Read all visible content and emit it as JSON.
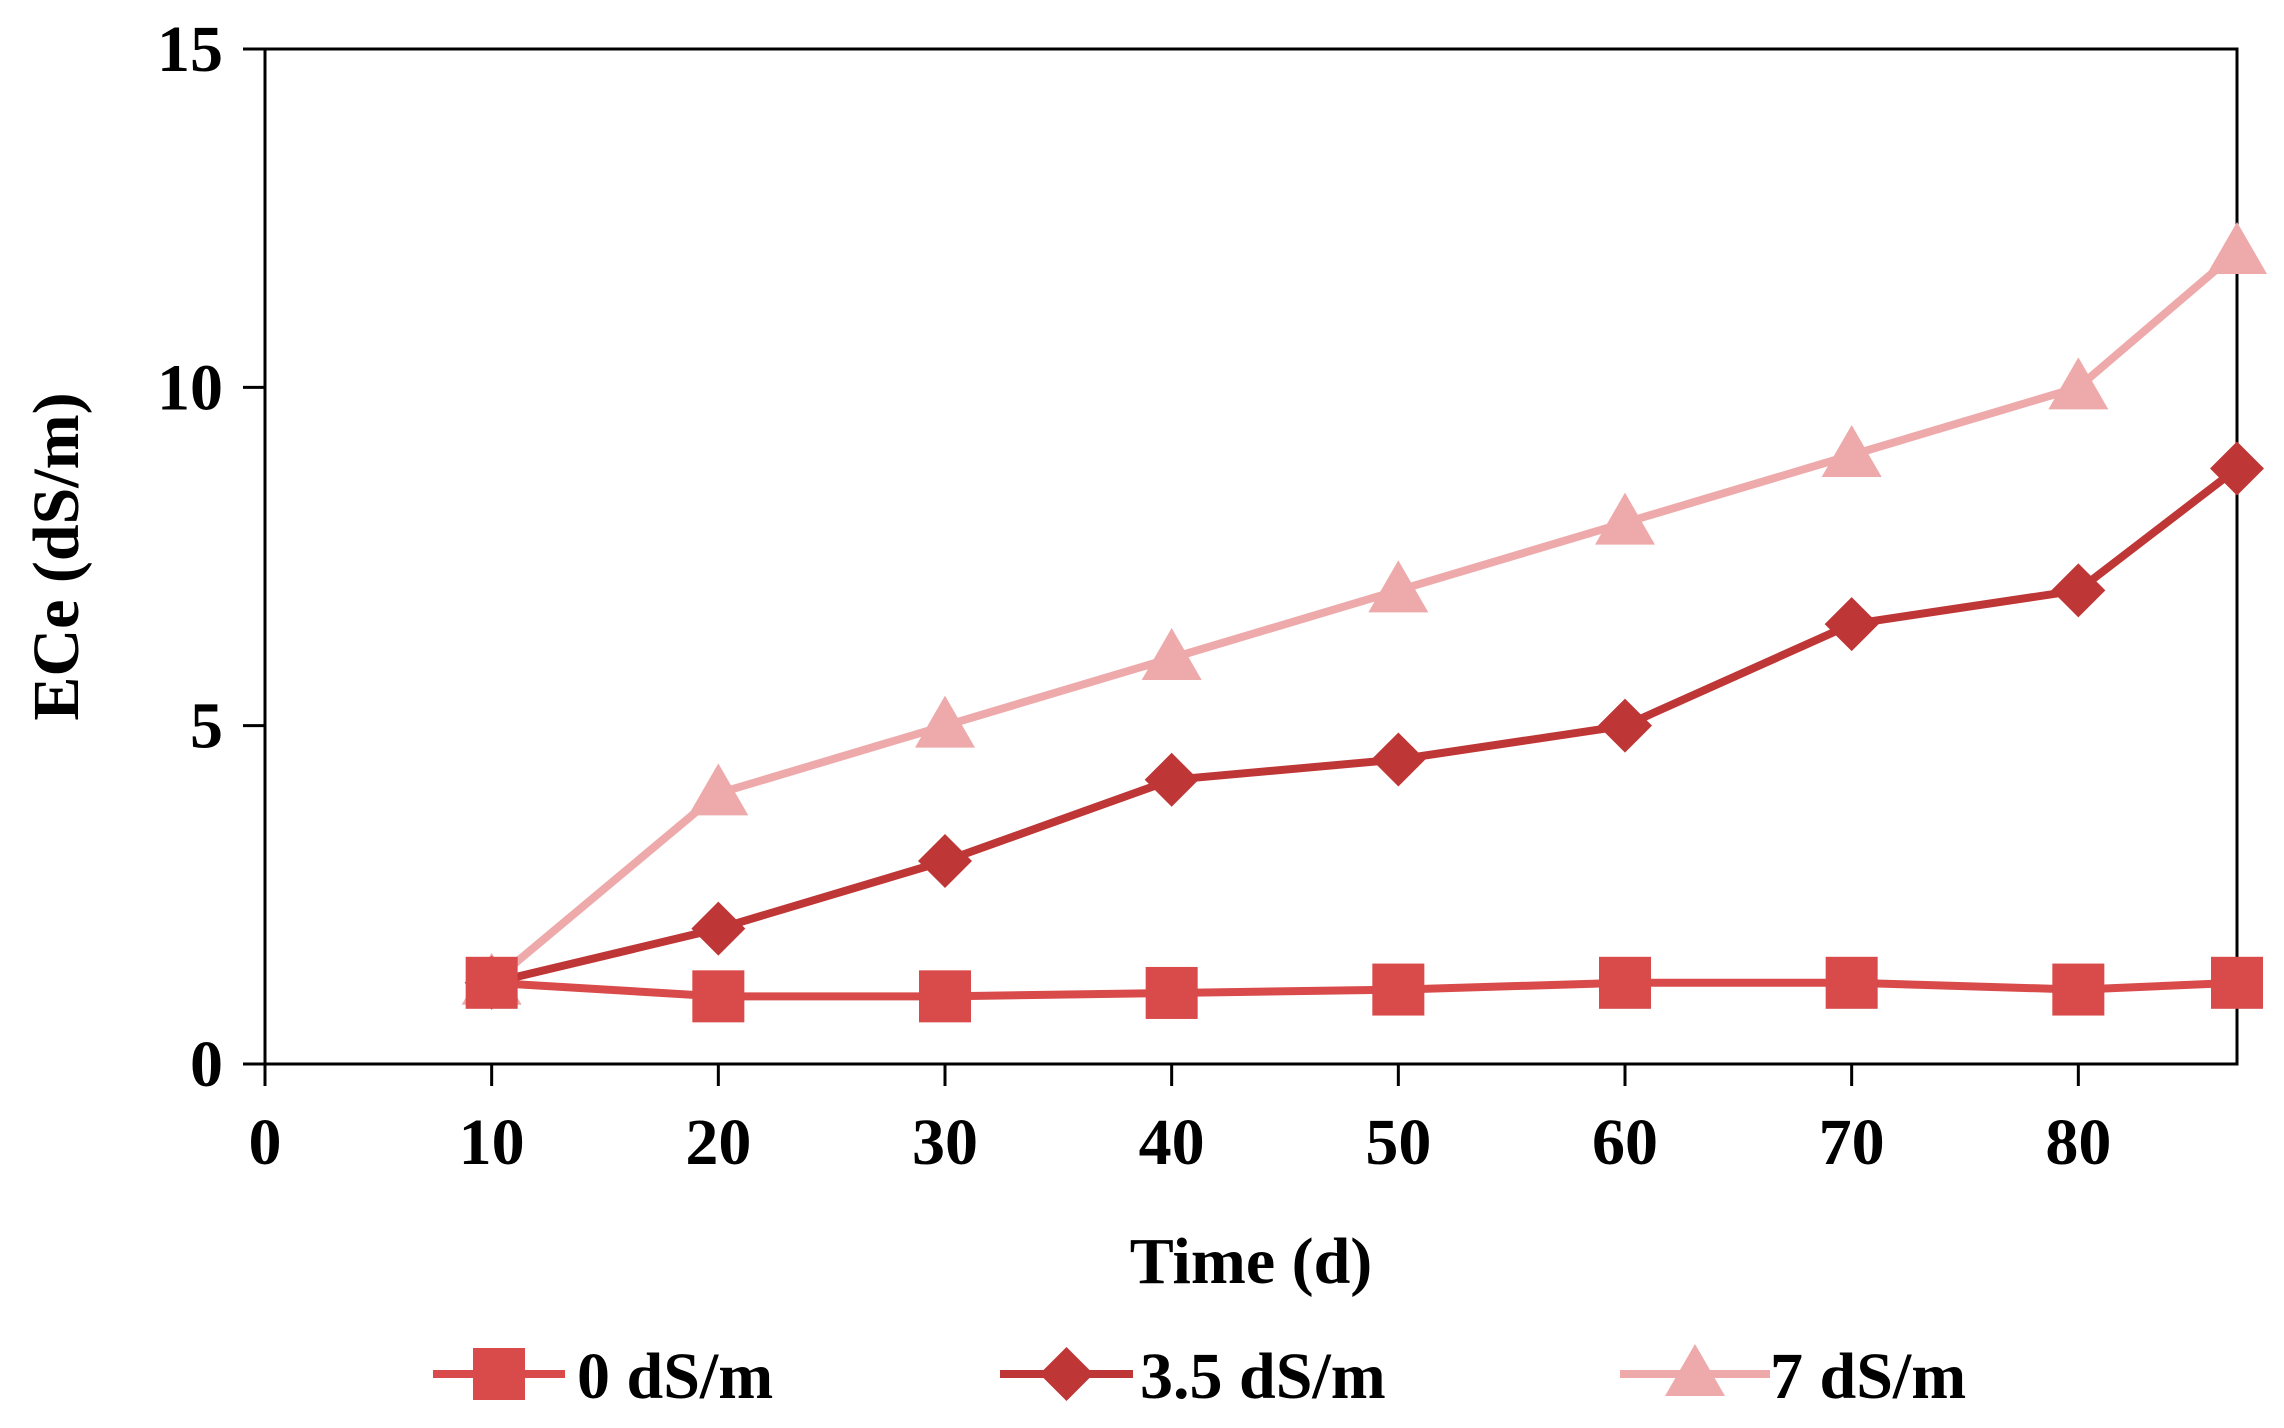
{
  "chart_data": {
    "type": "line",
    "title": "",
    "xlabel": "Time (d)",
    "ylabel": "ECe (dS/m)",
    "xlim": [
      0,
      87
    ],
    "ylim": [
      0,
      15
    ],
    "xticks": [
      0,
      10,
      20,
      30,
      40,
      50,
      60,
      70,
      80
    ],
    "yticks": [
      0,
      5,
      10,
      15
    ],
    "grid": false,
    "legend_position": "bottom",
    "x": [
      10,
      20,
      30,
      40,
      50,
      60,
      70,
      80,
      87
    ],
    "series": [
      {
        "name": "0 dS/m",
        "marker": "square",
        "color": "#d94a4a",
        "values": [
          1.2,
          1.0,
          1.0,
          1.05,
          1.1,
          1.2,
          1.2,
          1.1,
          1.2
        ]
      },
      {
        "name": "3.5 dS/m",
        "marker": "diamond",
        "color": "#bf3636",
        "values": [
          1.2,
          2.0,
          3.0,
          4.2,
          4.5,
          5.0,
          6.5,
          7.0,
          8.8
        ]
      },
      {
        "name": "7 dS/m",
        "marker": "triangle",
        "color": "#eeaaaa",
        "values": [
          1.2,
          4.0,
          5.0,
          6.0,
          7.0,
          8.0,
          9.0,
          10.0,
          12.0
        ]
      }
    ]
  }
}
